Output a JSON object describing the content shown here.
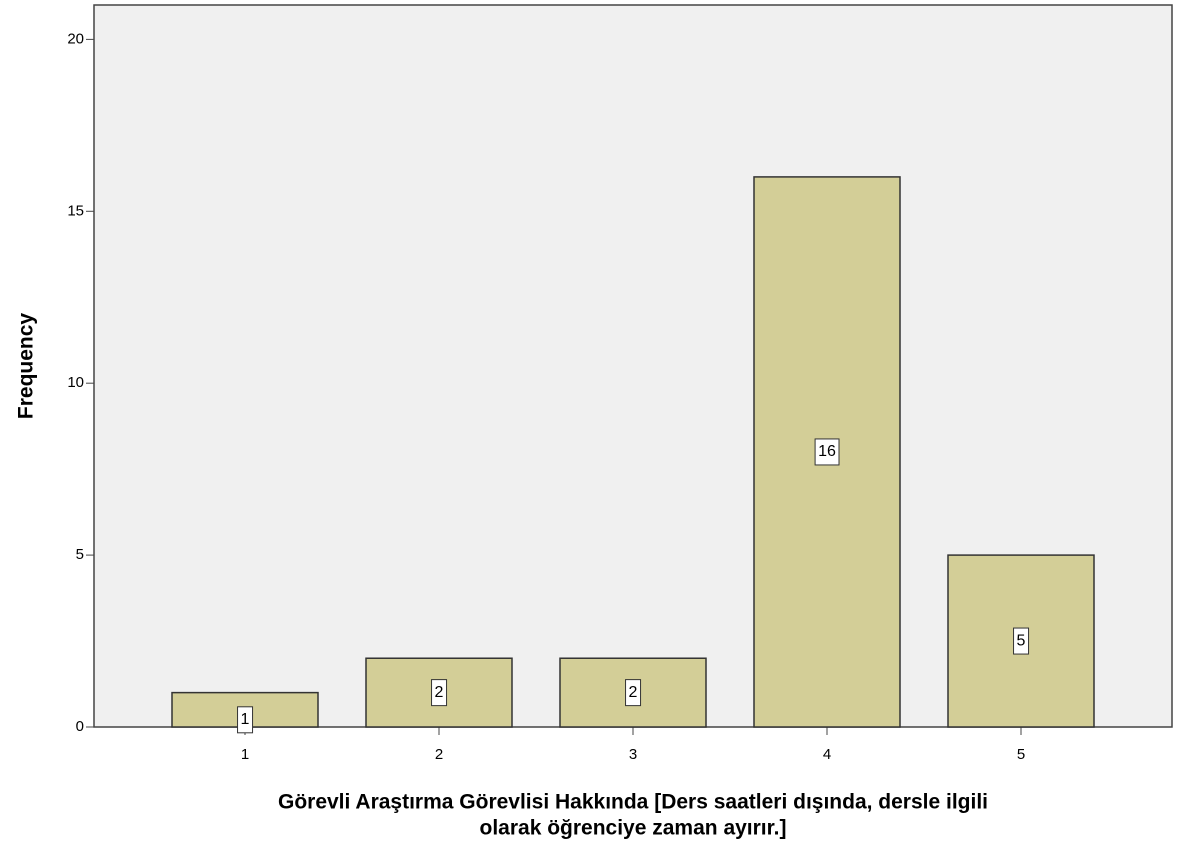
{
  "chart_data": {
    "type": "bar",
    "ylabel": "Frequency",
    "xlabel": [
      "Görevli Araştırma Görevlisi Hakkında [Ders saatleri dışında, dersle ilgili",
      "olarak öğrenciye zaman ayırır.]"
    ],
    "categories": [
      "1",
      "2",
      "3",
      "4",
      "5"
    ],
    "values": [
      1,
      2,
      2,
      16,
      5
    ],
    "color": "#d3ce97",
    "ylim": [
      0,
      21
    ],
    "yticks": [
      0,
      5,
      10,
      15,
      20
    ]
  }
}
